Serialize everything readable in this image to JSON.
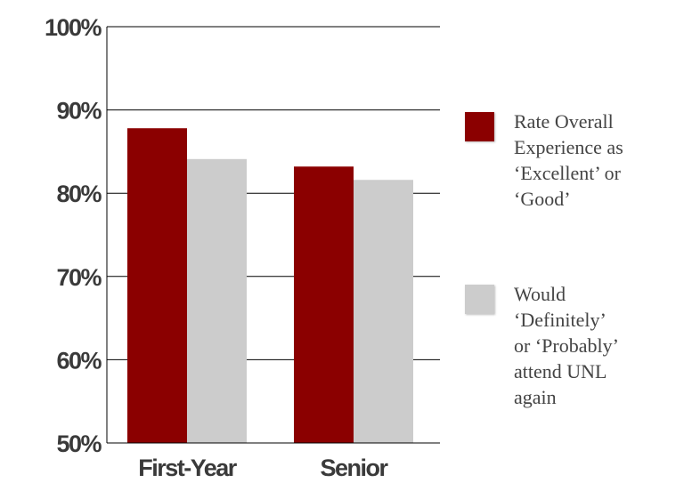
{
  "chart_data": {
    "type": "bar",
    "categories": [
      "First-Year",
      "Senior"
    ],
    "series": [
      {
        "name": "Rate Overall\nExperience as\n‘Excellent’ or\n‘Good’",
        "color": "#8b0000",
        "values": [
          87.8,
          83.2
        ]
      },
      {
        "name": "Would\n‘Definitely’\nor ‘Probably’\nattend UNL\nagain",
        "color": "#cccccc",
        "values": [
          84.1,
          81.6
        ]
      }
    ],
    "yticks": [
      "100%",
      "90%",
      "80%",
      "70%",
      "60%",
      "50%"
    ],
    "ylim": [
      50,
      100
    ],
    "grid": true,
    "legend_position": "right",
    "title": "",
    "xlabel": "",
    "ylabel": ""
  }
}
